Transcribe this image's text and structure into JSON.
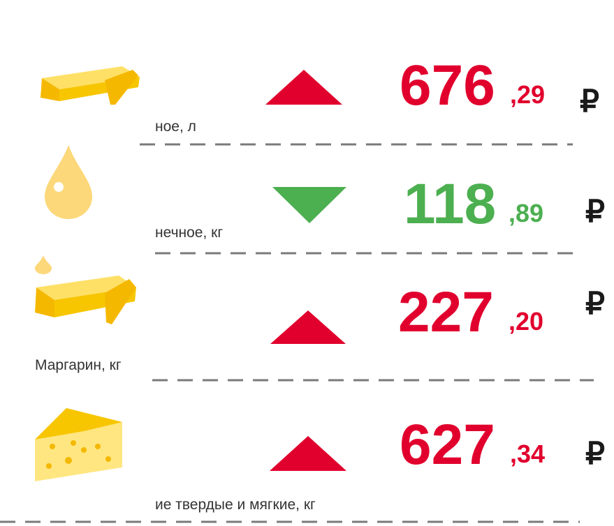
{
  "colors": {
    "up": "#e1002d",
    "down": "#4caf50"
  },
  "items": [
    {
      "label": "ное, л",
      "integer": "676",
      "decimal": ",29",
      "currency": "₽",
      "trend": "up"
    },
    {
      "label": "нечное, кг",
      "integer": "118",
      "decimal": ",89",
      "currency": "₽",
      "trend": "down"
    },
    {
      "label": "Маргарин, кг",
      "integer": "227",
      "decimal": ",20",
      "currency": "₽",
      "trend": "up"
    },
    {
      "label": "ие твердые и мягкие, кг",
      "integer": "627",
      "decimal": ",34",
      "currency": "₽",
      "trend": "up"
    }
  ]
}
